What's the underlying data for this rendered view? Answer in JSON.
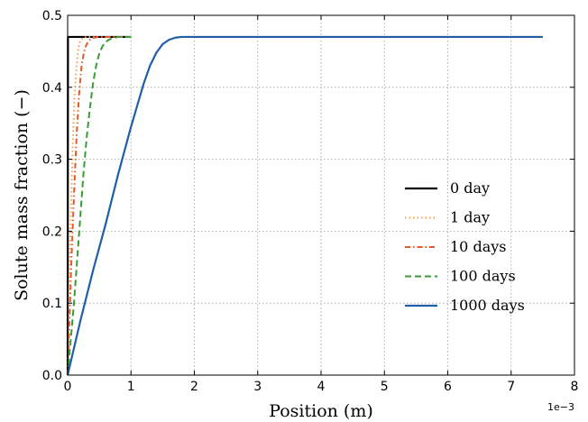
{
  "chart_data": {
    "type": "line",
    "xlabel": "Position (m)",
    "ylabel": "Solute mass fraction (−)",
    "x_offset_label": "1e−3",
    "xlim": [
      0,
      8
    ],
    "ylim": [
      0,
      0.5
    ],
    "x_ticks": [
      "0",
      "1",
      "2",
      "3",
      "4",
      "5",
      "6",
      "7",
      "8"
    ],
    "y_ticks": [
      "0.0",
      "0.1",
      "0.2",
      "0.3",
      "0.4",
      "0.5"
    ],
    "grid": true,
    "legend_position": "center-right",
    "series": [
      {
        "name": "0 day",
        "color": "#000000",
        "dash": "solid",
        "x": [
          0,
          0.005,
          1.0
        ],
        "y": [
          0,
          0.47,
          0.47
        ]
      },
      {
        "name": "1 day",
        "color": "#f5a04a",
        "dash": "dotted",
        "x": [
          0,
          0.02,
          0.05,
          0.08,
          0.11,
          0.14,
          0.17,
          0.2,
          0.25,
          0.3,
          0.4,
          0.5,
          0.7,
          1.0
        ],
        "y": [
          0,
          0.1,
          0.22,
          0.32,
          0.39,
          0.43,
          0.455,
          0.465,
          0.469,
          0.47,
          0.47,
          0.47,
          0.47,
          0.47
        ]
      },
      {
        "name": "10 days",
        "color": "#e8572a",
        "dash": "dashdot",
        "x": [
          0,
          0.03,
          0.06,
          0.1,
          0.14,
          0.18,
          0.22,
          0.26,
          0.3,
          0.35,
          0.42,
          0.5,
          0.7,
          1.0
        ],
        "y": [
          0,
          0.08,
          0.16,
          0.25,
          0.33,
          0.39,
          0.43,
          0.45,
          0.46,
          0.466,
          0.469,
          0.47,
          0.47,
          0.47
        ]
      },
      {
        "name": "100 days",
        "color": "#3a9a35",
        "dash": "dashed",
        "x": [
          0,
          0.05,
          0.1,
          0.15,
          0.2,
          0.25,
          0.3,
          0.35,
          0.4,
          0.45,
          0.5,
          0.55,
          0.6,
          0.65,
          0.7,
          0.8,
          0.9,
          1.0
        ],
        "y": [
          0,
          0.05,
          0.1,
          0.16,
          0.22,
          0.28,
          0.33,
          0.37,
          0.405,
          0.43,
          0.447,
          0.457,
          0.463,
          0.466,
          0.468,
          0.47,
          0.47,
          0.47
        ]
      },
      {
        "name": "1000 days",
        "color": "#1f5fa8",
        "dash": "solid",
        "x": [
          0,
          0.2,
          0.4,
          0.6,
          0.8,
          1.0,
          1.1,
          1.2,
          1.3,
          1.4,
          1.5,
          1.6,
          1.7,
          1.8,
          2.0,
          3.0,
          4.0,
          5.0,
          6.0,
          7.0,
          7.5
        ],
        "y": [
          0,
          0.075,
          0.145,
          0.21,
          0.28,
          0.345,
          0.375,
          0.405,
          0.43,
          0.448,
          0.46,
          0.466,
          0.469,
          0.47,
          0.47,
          0.47,
          0.47,
          0.47,
          0.47,
          0.47,
          0.47
        ]
      }
    ]
  }
}
